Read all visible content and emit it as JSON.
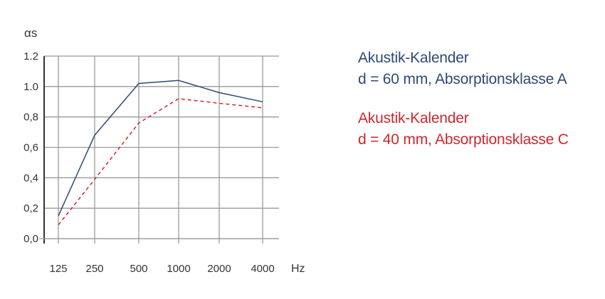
{
  "chart_data": {
    "type": "line",
    "ylabel": "αs",
    "xlabel_unit": "Hz",
    "categories": [
      "125",
      "250",
      "500",
      "1000",
      "2000",
      "4000"
    ],
    "ylim": [
      0,
      1.2
    ],
    "yticks": [
      "0,0",
      "0,2",
      "0,4",
      "0,6",
      "0,8",
      "1.0",
      "1.2"
    ],
    "grid": true,
    "series": [
      {
        "name_line1": "Akustik-Kalender",
        "name_line2": "d = 60 mm, Absorptionsklasse A",
        "values": [
          0.15,
          0.68,
          1.02,
          1.04,
          0.96,
          0.9
        ],
        "color": "#2d4a75",
        "style": "solid"
      },
      {
        "name_line1": "Akustik-Kalender",
        "name_line2": "d = 40 mm, Absorptionsklasse C",
        "values": [
          0.09,
          0.39,
          0.76,
          0.92,
          0.89,
          0.86
        ],
        "color": "#d0262c",
        "style": "dashed"
      }
    ]
  }
}
